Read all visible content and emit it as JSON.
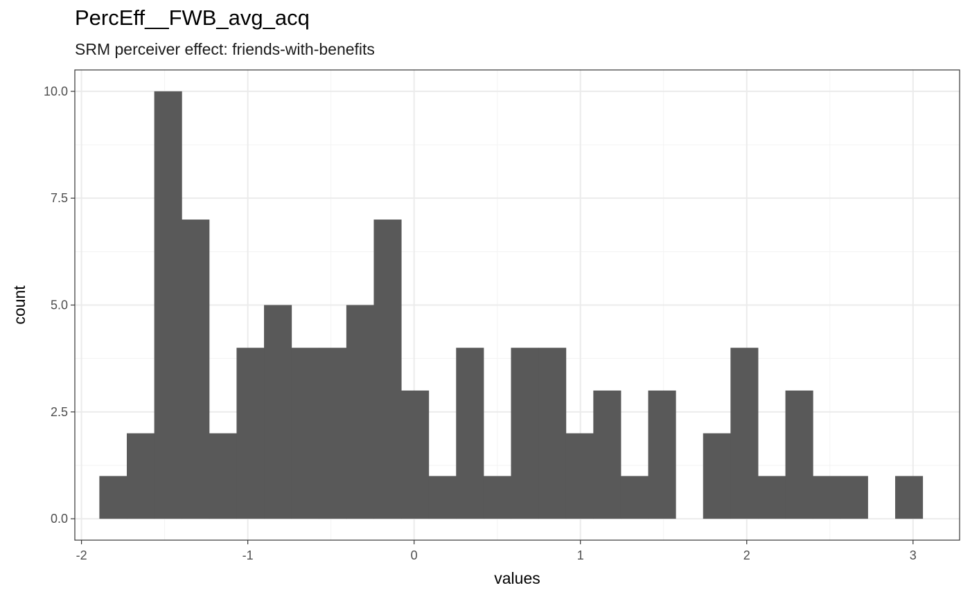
{
  "chart_data": {
    "type": "bar",
    "title": "PercEff__FWB_avg_acq",
    "subtitle": "SRM perceiver effect: friends-with-benefits",
    "xlabel": "values",
    "ylabel": "count",
    "xlim": [
      -2.04,
      3.28
    ],
    "ylim": [
      -0.5,
      10.5
    ],
    "x_ticks": [
      -2,
      -1,
      0,
      1,
      2,
      3
    ],
    "x_tick_labels": [
      "-2",
      "-1",
      "0",
      "1",
      "2",
      "3"
    ],
    "y_ticks": [
      0,
      2.5,
      5,
      7.5,
      10
    ],
    "y_tick_labels": [
      "0.0",
      "2.5",
      "5.0",
      "7.5",
      "10.0"
    ],
    "grid": true,
    "bin_width": 0.165,
    "bins": [
      {
        "x": -1.81,
        "count": 1
      },
      {
        "x": -1.645,
        "count": 2
      },
      {
        "x": -1.48,
        "count": 10
      },
      {
        "x": -1.315,
        "count": 7
      },
      {
        "x": -1.15,
        "count": 2
      },
      {
        "x": -0.985,
        "count": 4
      },
      {
        "x": -0.82,
        "count": 5
      },
      {
        "x": -0.655,
        "count": 4
      },
      {
        "x": -0.49,
        "count": 4
      },
      {
        "x": -0.325,
        "count": 5
      },
      {
        "x": -0.16,
        "count": 7
      },
      {
        "x": 0.005,
        "count": 3
      },
      {
        "x": 0.17,
        "count": 1
      },
      {
        "x": 0.335,
        "count": 4
      },
      {
        "x": 0.5,
        "count": 1
      },
      {
        "x": 0.665,
        "count": 4
      },
      {
        "x": 0.83,
        "count": 4
      },
      {
        "x": 0.995,
        "count": 2
      },
      {
        "x": 1.16,
        "count": 3
      },
      {
        "x": 1.325,
        "count": 1
      },
      {
        "x": 1.49,
        "count": 3
      },
      {
        "x": 1.655,
        "count": 0
      },
      {
        "x": 1.82,
        "count": 2
      },
      {
        "x": 1.985,
        "count": 4
      },
      {
        "x": 2.15,
        "count": 1
      },
      {
        "x": 2.315,
        "count": 3
      },
      {
        "x": 2.48,
        "count": 1
      },
      {
        "x": 2.645,
        "count": 1
      },
      {
        "x": 2.81,
        "count": 0
      },
      {
        "x": 2.975,
        "count": 1
      }
    ],
    "colors": {
      "bar": "#595959",
      "panel_border": "#333333",
      "grid_major": "#ebebeb",
      "grid_minor": "#f3f3f3",
      "tick": "#333333"
    }
  }
}
